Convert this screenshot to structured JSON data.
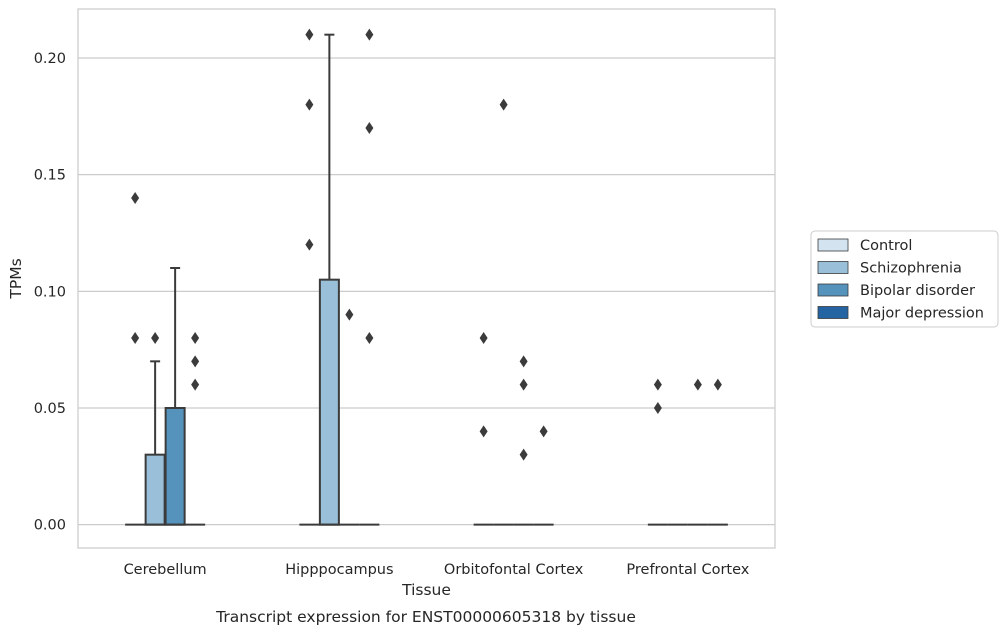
{
  "chart_data": {
    "type": "box",
    "xlabel": "Tissue",
    "ylabel": "TPMs",
    "caption": "Transcript expression for ENST00000605318 by tissue",
    "ylim": [
      -0.01,
      0.221
    ],
    "yticks": [
      0.0,
      0.05,
      0.1,
      0.15,
      0.2
    ],
    "ytick_labels": [
      "0.00",
      "0.05",
      "0.10",
      "0.15",
      "0.20"
    ],
    "grid": "horizontal",
    "legend_placement": "right",
    "categories": [
      "Cerebellum",
      "Hipppocampus",
      "Orbitofontal Cortex",
      "Prefrontal Cortex"
    ],
    "series": [
      {
        "name": "Control",
        "color": "#d3e3f0",
        "boxes": [
          {
            "q1": 0,
            "median": 0,
            "q3": 0,
            "whisker_low": 0,
            "whisker_high": 0,
            "outliers": [
              0.14,
              0.08
            ]
          },
          {
            "q1": 0,
            "median": 0,
            "q3": 0,
            "whisker_low": 0,
            "whisker_high": 0,
            "outliers": [
              0.21,
              0.18,
              0.12
            ]
          },
          {
            "q1": 0,
            "median": 0,
            "q3": 0,
            "whisker_low": 0,
            "whisker_high": 0,
            "outliers": [
              0.08,
              0.04
            ]
          },
          {
            "q1": 0,
            "median": 0,
            "q3": 0,
            "whisker_low": 0,
            "whisker_high": 0,
            "outliers": [
              0.06,
              0.05
            ]
          }
        ]
      },
      {
        "name": "Schizophrenia",
        "color": "#9ac0d9",
        "boxes": [
          {
            "q1": 0,
            "median": 0,
            "q3": 0.03,
            "whisker_low": 0,
            "whisker_high": 0.07,
            "outliers": [
              0.08
            ]
          },
          {
            "q1": 0,
            "median": 0,
            "q3": 0.105,
            "whisker_low": 0,
            "whisker_high": 0.21,
            "outliers": []
          },
          {
            "q1": 0,
            "median": 0,
            "q3": 0,
            "whisker_low": 0,
            "whisker_high": 0,
            "outliers": [
              0.18
            ]
          },
          {
            "q1": 0,
            "median": 0,
            "q3": 0,
            "whisker_low": 0,
            "whisker_high": 0,
            "outliers": []
          }
        ]
      },
      {
        "name": "Bipolar disorder",
        "color": "#5593bd",
        "boxes": [
          {
            "q1": 0,
            "median": 0,
            "q3": 0.05,
            "whisker_low": 0,
            "whisker_high": 0.11,
            "outliers": []
          },
          {
            "q1": 0,
            "median": 0,
            "q3": 0,
            "whisker_low": 0,
            "whisker_high": 0,
            "outliers": [
              0.09
            ]
          },
          {
            "q1": 0,
            "median": 0,
            "q3": 0,
            "whisker_low": 0,
            "whisker_high": 0,
            "outliers": [
              0.07,
              0.06,
              0.03
            ]
          },
          {
            "q1": 0,
            "median": 0,
            "q3": 0,
            "whisker_low": 0,
            "whisker_high": 0,
            "outliers": [
              0.06
            ]
          }
        ]
      },
      {
        "name": "Major depression",
        "color": "#2464a3",
        "boxes": [
          {
            "q1": 0,
            "median": 0,
            "q3": 0,
            "whisker_low": 0,
            "whisker_high": 0,
            "outliers": [
              0.08,
              0.07,
              0.06
            ]
          },
          {
            "q1": 0,
            "median": 0,
            "q3": 0,
            "whisker_low": 0,
            "whisker_high": 0,
            "outliers": [
              0.21,
              0.17,
              0.08
            ]
          },
          {
            "q1": 0,
            "median": 0,
            "q3": 0,
            "whisker_low": 0,
            "whisker_high": 0,
            "outliers": [
              0.04
            ]
          },
          {
            "q1": 0,
            "median": 0,
            "q3": 0,
            "whisker_low": 0,
            "whisker_high": 0,
            "outliers": [
              0.06
            ]
          }
        ]
      }
    ]
  }
}
